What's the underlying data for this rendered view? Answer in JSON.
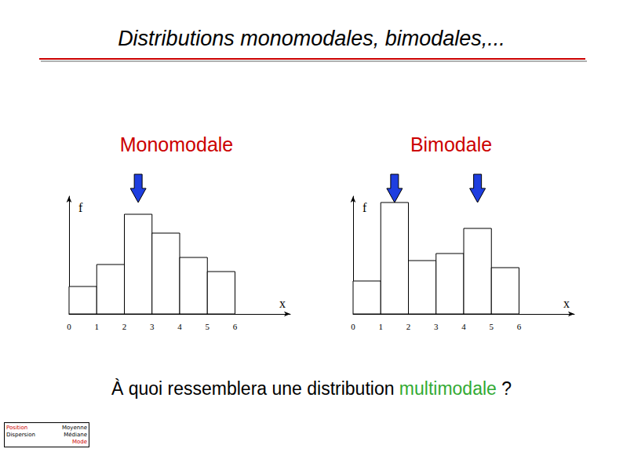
{
  "title": "Distributions monomodales, bimodales,...",
  "chart_data": [
    {
      "type": "histogram",
      "title": "Monomodale",
      "bins": [
        0,
        1,
        2,
        3,
        4,
        5,
        6
      ],
      "counts": [
        35,
        63,
        127,
        103,
        72,
        54
      ],
      "xlim": [
        0,
        8
      ],
      "xticks": [
        0,
        1,
        2,
        3,
        4,
        5,
        6
      ],
      "ylim": [
        0,
        150
      ],
      "x_label": "x",
      "y_label": "f",
      "tick_labels": "x",
      "grid": false,
      "color": "#ffffff"
    },
    {
      "type": "histogram",
      "title": "Bimodale",
      "bins": [
        0,
        1,
        2,
        3,
        4,
        5,
        6
      ],
      "counts": [
        42,
        142,
        68,
        77,
        109,
        59
      ],
      "xlim": [
        0,
        8
      ],
      "xticks": [
        0,
        1,
        2,
        3,
        4,
        5,
        6
      ],
      "ylim": [
        0,
        150
      ],
      "x_label": "x",
      "y_label": "f",
      "tick_labels": "x",
      "grid": false,
      "color": "#ffffff"
    }
  ],
  "question": [
    {
      "text": "À quoi ressemblera une distribution "
    },
    {
      "text": "multimodale",
      "color": "#33aa33"
    },
    {
      "text": " ?"
    }
  ],
  "footer": {
    "left": [
      {
        "text": "Position",
        "color": "#cc0000"
      },
      {
        "text": "Dispersion"
      }
    ],
    "right": [
      {
        "text": "Moyenne"
      },
      {
        "text": "Médiane"
      },
      {
        "text": "Mode",
        "color": "#cc0000"
      }
    ]
  }
}
